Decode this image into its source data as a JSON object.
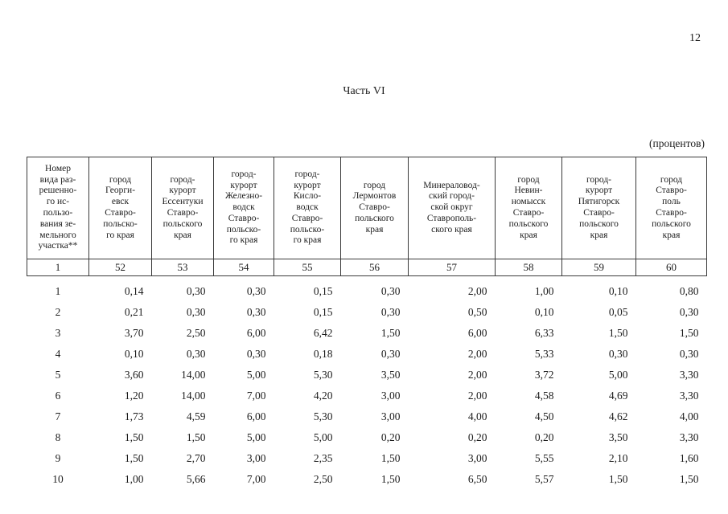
{
  "page": {
    "number": "12",
    "title": "Часть VI",
    "units_note": "(процентов)"
  },
  "table": {
    "columns": [
      {
        "code": "1",
        "header": "Номер\nвида раз-\nрешенно-\nго ис-\nпользо-\nвания зе-\nмельного\nучастка**"
      },
      {
        "code": "52",
        "header": "город\nГеорги-\nевск\nСтавро-\nпольско-\nго края"
      },
      {
        "code": "53",
        "header": "город-\nкурорт\nЕссентуки\nСтавро-\nпольского\nкрая"
      },
      {
        "code": "54",
        "header": "город-\nкурорт\nЖелезно-\nводск\nСтавро-\nпольско-\nго края"
      },
      {
        "code": "55",
        "header": "город-\nкурорт\nКисло-\nводск\nСтавро-\nпольско-\nго края"
      },
      {
        "code": "56",
        "header": "город\nЛермонтов\nСтавро-\nпольского\nкрая"
      },
      {
        "code": "57",
        "header": "Минераловод-\nский город-\nской округ\nСтаврополь-\nского края"
      },
      {
        "code": "58",
        "header": "город\nНевин-\nномысск\nСтавро-\nпольского\nкрая"
      },
      {
        "code": "59",
        "header": "город-\nкурорт\nПятигорск\nСтавро-\nпольского\nкрая"
      },
      {
        "code": "60",
        "header": "город\nСтавро-\nполь\nСтавро-\nпольского\nкрая"
      }
    ],
    "rows": [
      {
        "id": "1",
        "values": [
          "0,14",
          "0,30",
          "0,30",
          "0,15",
          "0,30",
          "2,00",
          "1,00",
          "0,10",
          "0,80"
        ]
      },
      {
        "id": "2",
        "values": [
          "0,21",
          "0,30",
          "0,30",
          "0,15",
          "0,30",
          "0,50",
          "0,10",
          "0,05",
          "0,30"
        ]
      },
      {
        "id": "3",
        "values": [
          "3,70",
          "2,50",
          "6,00",
          "6,42",
          "1,50",
          "6,00",
          "6,33",
          "1,50",
          "1,50"
        ]
      },
      {
        "id": "4",
        "values": [
          "0,10",
          "0,30",
          "0,30",
          "0,18",
          "0,30",
          "2,00",
          "5,33",
          "0,30",
          "0,30"
        ]
      },
      {
        "id": "5",
        "values": [
          "3,60",
          "14,00",
          "5,00",
          "5,30",
          "3,50",
          "2,00",
          "3,72",
          "5,00",
          "3,30"
        ]
      },
      {
        "id": "6",
        "values": [
          "1,20",
          "14,00",
          "7,00",
          "4,20",
          "3,00",
          "2,00",
          "4,58",
          "4,69",
          "3,30"
        ]
      },
      {
        "id": "7",
        "values": [
          "1,73",
          "4,59",
          "6,00",
          "5,30",
          "3,00",
          "4,00",
          "4,50",
          "4,62",
          "4,00"
        ]
      },
      {
        "id": "8",
        "values": [
          "1,50",
          "1,50",
          "5,00",
          "5,00",
          "0,20",
          "0,20",
          "0,20",
          "3,50",
          "3,30"
        ]
      },
      {
        "id": "9",
        "values": [
          "1,50",
          "2,70",
          "3,00",
          "2,35",
          "1,50",
          "3,00",
          "5,55",
          "2,10",
          "1,60"
        ]
      },
      {
        "id": "10",
        "values": [
          "1,00",
          "5,66",
          "7,00",
          "2,50",
          "1,50",
          "6,50",
          "5,57",
          "1,50",
          "1,50"
        ]
      }
    ]
  }
}
